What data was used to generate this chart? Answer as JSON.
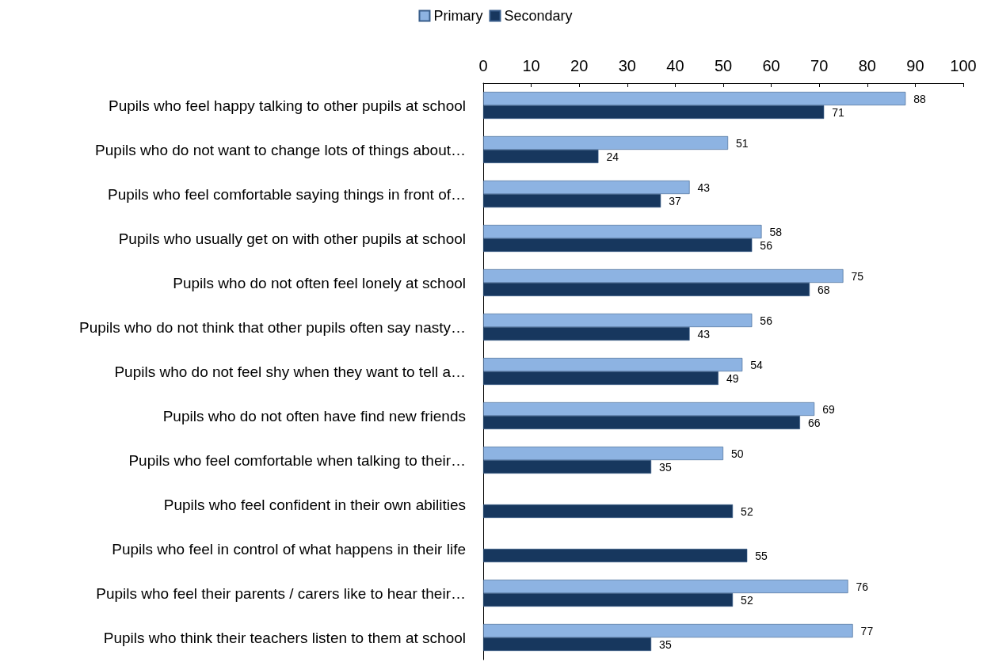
{
  "chart_data": {
    "type": "bar",
    "orientation": "horizontal",
    "categories": [
      "Pupils who feel happy talking to other pupils at school",
      "Pupils who do not want to change lots of things about…",
      "Pupils who feel comfortable saying things in front of…",
      "Pupils who usually get on with other pupils at school",
      "Pupils who do not often feel lonely at school",
      "Pupils who do not think that other pupils often say nasty…",
      "Pupils who do not feel shy when they want to tell a…",
      "Pupils who do not often have find new friends",
      "Pupils who feel comfortable when talking to their…",
      "Pupils who feel confident in their own abilities",
      "Pupils who feel in control of what happens in their life",
      "Pupils who feel their parents / carers like to hear their…",
      "Pupils who think their teachers listen to them at school"
    ],
    "series": [
      {
        "name": "Primary",
        "color": "#8db3e2",
        "values": [
          88,
          51,
          43,
          58,
          75,
          56,
          54,
          69,
          50,
          null,
          null,
          76,
          77
        ]
      },
      {
        "name": "Secondary",
        "color": "#17375e",
        "values": [
          71,
          24,
          37,
          56,
          68,
          43,
          49,
          66,
          35,
          52,
          55,
          52,
          35
        ]
      }
    ],
    "xlim": [
      0,
      100
    ],
    "xticks": [
      0,
      10,
      20,
      30,
      40,
      50,
      60,
      70,
      80,
      90,
      100
    ],
    "data_labels": true,
    "legend": "top",
    "grid": false
  }
}
